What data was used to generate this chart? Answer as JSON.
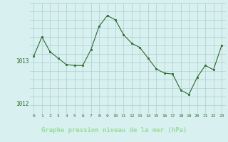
{
  "x": [
    0,
    1,
    2,
    3,
    4,
    5,
    6,
    7,
    8,
    9,
    10,
    11,
    12,
    13,
    14,
    15,
    16,
    17,
    18,
    19,
    20,
    21,
    22,
    23
  ],
  "y": [
    1013.1,
    1013.55,
    1013.2,
    1013.05,
    1012.9,
    1012.88,
    1012.88,
    1013.25,
    1013.8,
    1014.05,
    1013.95,
    1013.6,
    1013.4,
    1013.3,
    1013.05,
    1012.8,
    1012.7,
    1012.68,
    1012.3,
    1012.2,
    1012.6,
    1012.88,
    1012.78,
    1013.35
  ],
  "line_color": "#2d6a2d",
  "marker_color": "#2d6a2d",
  "bg_color": "#d8f0f0",
  "grid_color": "#aacece",
  "bottom_bg": "#336633",
  "bottom_text": "#99dd99",
  "xlabel": "Graphe pression niveau de la mer (hPa)",
  "ylim_min": 1011.75,
  "ylim_max": 1014.35,
  "ytick_vals": [
    1012,
    1013
  ],
  "tick_fontsize": 5.5,
  "label_fontsize": 6.5
}
